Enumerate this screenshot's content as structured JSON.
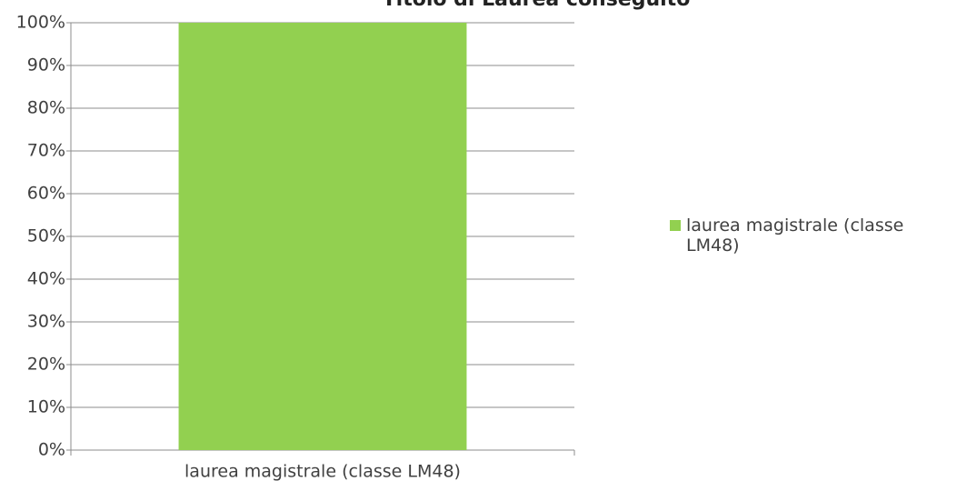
{
  "chart_data": {
    "type": "bar",
    "title": "Titolo di Laurea conseguito",
    "categories": [
      "laurea magistrale (classe LM48)"
    ],
    "series": [
      {
        "name": "laurea magistrale (classe LM48)",
        "color": "#92d050",
        "values": [
          100
        ]
      }
    ],
    "ylim": [
      0,
      100
    ],
    "yticks": [
      {
        "value": 0,
        "label": "0%"
      },
      {
        "value": 10,
        "label": "10%"
      },
      {
        "value": 20,
        "label": "20%"
      },
      {
        "value": 30,
        "label": "30%"
      },
      {
        "value": 40,
        "label": "40%"
      },
      {
        "value": 50,
        "label": "50%"
      },
      {
        "value": 60,
        "label": "60%"
      },
      {
        "value": 70,
        "label": "70%"
      },
      {
        "value": 80,
        "label": "80%"
      },
      {
        "value": 90,
        "label": "90%"
      },
      {
        "value": 100,
        "label": "100%"
      }
    ],
    "grid": true,
    "legend": "right"
  }
}
